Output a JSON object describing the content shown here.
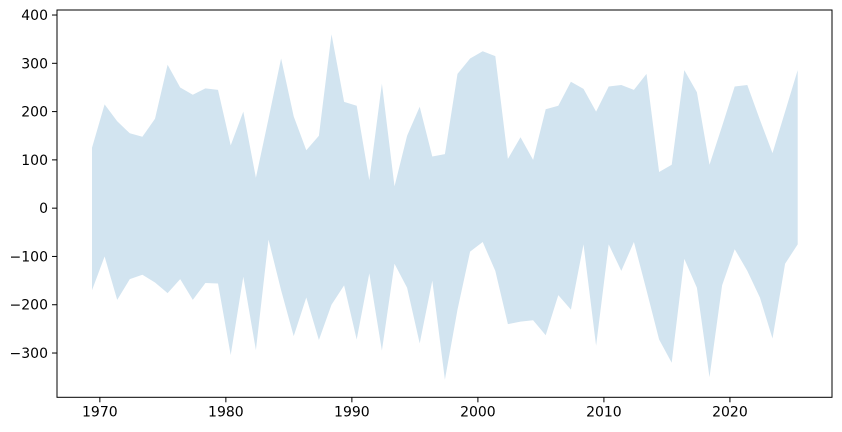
{
  "figure": {
    "background": "#ffffff",
    "axes_edge_color": "#000000",
    "tick_color": "#000000",
    "label_color": "#000000"
  },
  "chart_data": {
    "type": "area",
    "title": "",
    "xlabel": "",
    "ylabel": "",
    "grid": false,
    "legend": null,
    "fill_color": "#d2e4f0",
    "xlim": [
      1966.6,
      2028.1
    ],
    "ylim": [
      -391.7,
      410.4
    ],
    "xticks": [
      1970,
      1980,
      1990,
      2000,
      2010,
      2020
    ],
    "yticks": [
      -300,
      -200,
      -100,
      0,
      100,
      200,
      300,
      400
    ],
    "xtick_labels": [
      "1970",
      "1980",
      "1990",
      "2000",
      "2010",
      "2020"
    ],
    "ytick_labels": [
      "−300",
      "−200",
      "−100",
      "0",
      "100",
      "200",
      "300",
      "400"
    ],
    "x": [
      1969,
      1970,
      1971,
      1972,
      1973,
      1974,
      1975,
      1976,
      1977,
      1978,
      1979,
      1980,
      1981,
      1982,
      1983,
      1984,
      1985,
      1986,
      1987,
      1988,
      1989,
      1990,
      1991,
      1992,
      1993,
      1994,
      1995,
      1996,
      1997,
      1998,
      1999,
      2000,
      2001,
      2002,
      2003,
      2004,
      2005,
      2006,
      2007,
      2008,
      2009,
      2010,
      2011,
      2012,
      2013,
      2014,
      2015,
      2016,
      2017,
      2018,
      2019,
      2020,
      2021,
      2022,
      2023,
      2024,
      2025
    ],
    "series": [
      {
        "name": "band",
        "upper": [
          125,
          215,
          180,
          155,
          148,
          185,
          297,
          250,
          235,
          248,
          245,
          130,
          200,
          63,
          185,
          310,
          190,
          120,
          150,
          360,
          220,
          212,
          58,
          258,
          45,
          150,
          210,
          107,
          112,
          278,
          310,
          325,
          315,
          102,
          147,
          100,
          205,
          212,
          262,
          247,
          200,
          252,
          255,
          245,
          278,
          75,
          90,
          286,
          240,
          90,
          170,
          252,
          255,
          183,
          114,
          200,
          286
        ],
        "lower": [
          -170,
          -100,
          -190,
          -147,
          -138,
          -154,
          -176,
          -147,
          -190,
          -155,
          -156,
          -304,
          -142,
          -294,
          -65,
          -170,
          -265,
          -185,
          -273,
          -200,
          -160,
          -272,
          -135,
          -295,
          -115,
          -165,
          -280,
          -150,
          -355,
          -210,
          -90,
          -70,
          -130,
          -240,
          -235,
          -232,
          -263,
          -180,
          -210,
          -75,
          -285,
          -75,
          -130,
          -70,
          -170,
          -272,
          -320,
          -105,
          -165,
          -350,
          -160,
          -85,
          -130,
          -185,
          -270,
          -115,
          -75
        ]
      }
    ]
  }
}
